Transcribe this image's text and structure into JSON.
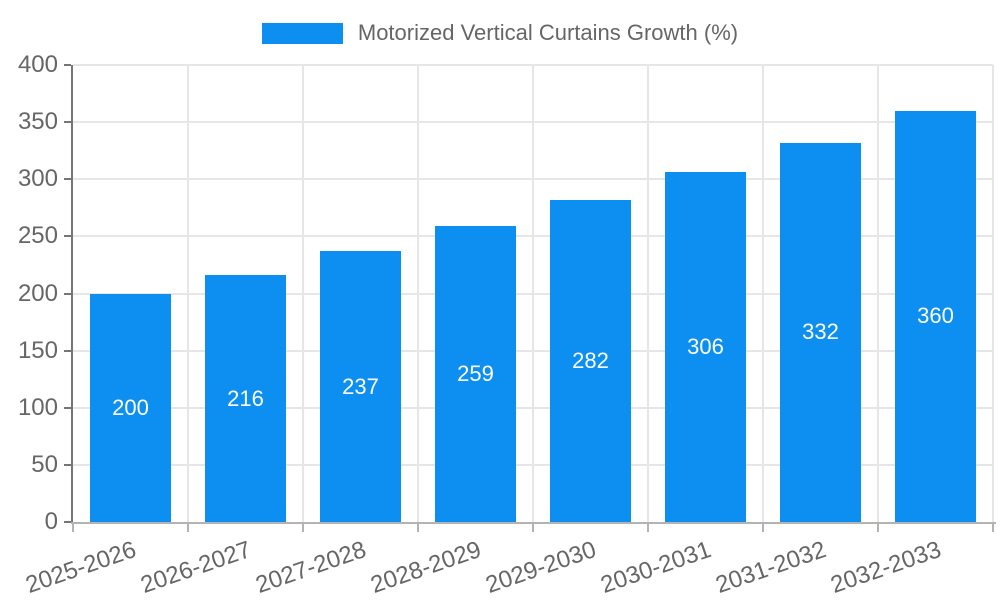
{
  "chart_data": {
    "type": "bar",
    "title": "",
    "legend_label": "Motorized Vertical Curtains Growth (%)",
    "categories": [
      "2025-2026",
      "2026-2027",
      "2027-2028",
      "2028-2029",
      "2029-2030",
      "2030-2031",
      "2031-2032",
      "2032-2033"
    ],
    "values": [
      200,
      216,
      237,
      259,
      282,
      306,
      332,
      360
    ],
    "value_labels_inside_bars": true,
    "ylim": [
      0,
      400
    ],
    "ytick_step": 50,
    "grid": true,
    "legend_position": "top",
    "x_tick_rotation_deg": -19,
    "colors": {
      "bar": "#0D8FF2",
      "value_label": "#FFFFFF",
      "grid": "#E6E6E6",
      "y_axis_line": "#757575",
      "x_axis_line": "#B3B3B3",
      "tick_text": "#666666",
      "legend_text": "#666666",
      "background": "#FFFFFF"
    }
  }
}
